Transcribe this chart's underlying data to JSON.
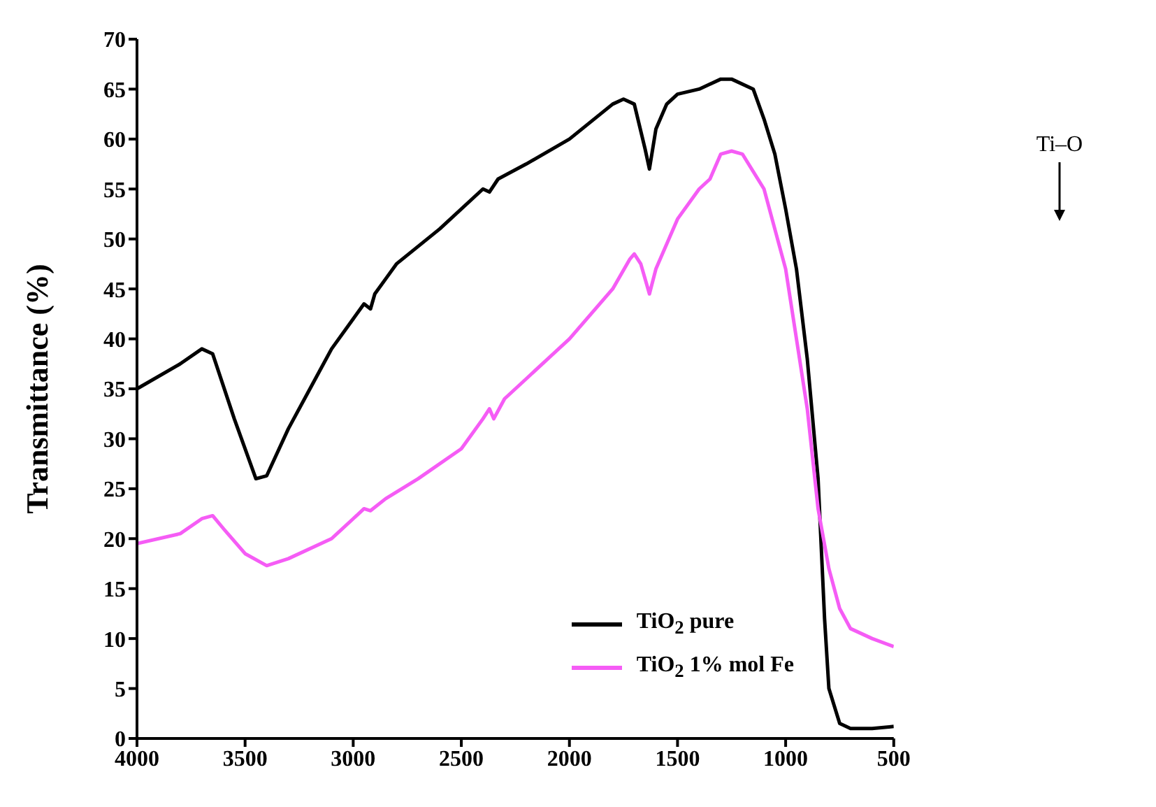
{
  "chart_data": {
    "type": "line",
    "ylabel": "Transmittance (%)",
    "xlim": [
      4000,
      500
    ],
    "xticks": [
      4000,
      3500,
      3000,
      2500,
      2000,
      1500,
      1000,
      500
    ],
    "ylim": [
      0,
      70
    ],
    "yticks": [
      0,
      5,
      10,
      15,
      20,
      25,
      30,
      35,
      40,
      45,
      50,
      55,
      60,
      65,
      70
    ],
    "grid": false,
    "legend": "bottom right",
    "marker": "none",
    "line_style": "solid",
    "annotations": [
      "Ti–O"
    ],
    "series": [
      {
        "name": "TiO$_{2}$ pure",
        "color": "#000000",
        "x": [
          4000,
          3800,
          3700,
          3650,
          3550,
          3450,
          3400,
          3300,
          3200,
          3100,
          3000,
          2950,
          2920,
          2900,
          2850,
          2800,
          2600,
          2400,
          2370,
          2330,
          2200,
          2000,
          1800,
          1750,
          1700,
          1650,
          1630,
          1600,
          1550,
          1500,
          1400,
          1300,
          1250,
          1150,
          1100,
          1050,
          1000,
          950,
          900,
          850,
          820,
          800,
          750,
          700,
          600,
          500
        ],
        "values": [
          35,
          37.5,
          39,
          38.5,
          32,
          26,
          26.3,
          31,
          35,
          39,
          42,
          43.5,
          43,
          44.5,
          46,
          47.5,
          51,
          55,
          54.7,
          56,
          57.5,
          60,
          63.5,
          64,
          63.5,
          59,
          57,
          61,
          63.5,
          64.5,
          65,
          66,
          66,
          65,
          62,
          58.5,
          53,
          47,
          38,
          26,
          12,
          5,
          1.5,
          1,
          1,
          1.2
        ]
      },
      {
        "name": "TiO$_{2}$ 1% mol Fe",
        "color": "#f55cf5",
        "x": [
          4000,
          3800,
          3700,
          3650,
          3600,
          3500,
          3400,
          3300,
          3100,
          3000,
          2950,
          2920,
          2850,
          2700,
          2500,
          2400,
          2370,
          2350,
          2300,
          2200,
          2000,
          1800,
          1720,
          1700,
          1670,
          1630,
          1600,
          1500,
          1400,
          1350,
          1300,
          1250,
          1200,
          1100,
          1000,
          900,
          850,
          800,
          750,
          700,
          600,
          500
        ],
        "values": [
          19.5,
          20.5,
          22,
          22.3,
          21,
          18.5,
          17.3,
          18,
          20,
          22,
          23,
          22.8,
          24,
          26,
          29,
          32,
          33,
          32,
          34,
          36,
          40,
          45,
          48,
          48.5,
          47.5,
          44.5,
          47,
          52,
          55,
          56,
          58.5,
          58.8,
          58.5,
          55,
          47,
          33,
          23,
          17,
          13,
          11,
          10,
          9.2
        ]
      }
    ]
  }
}
